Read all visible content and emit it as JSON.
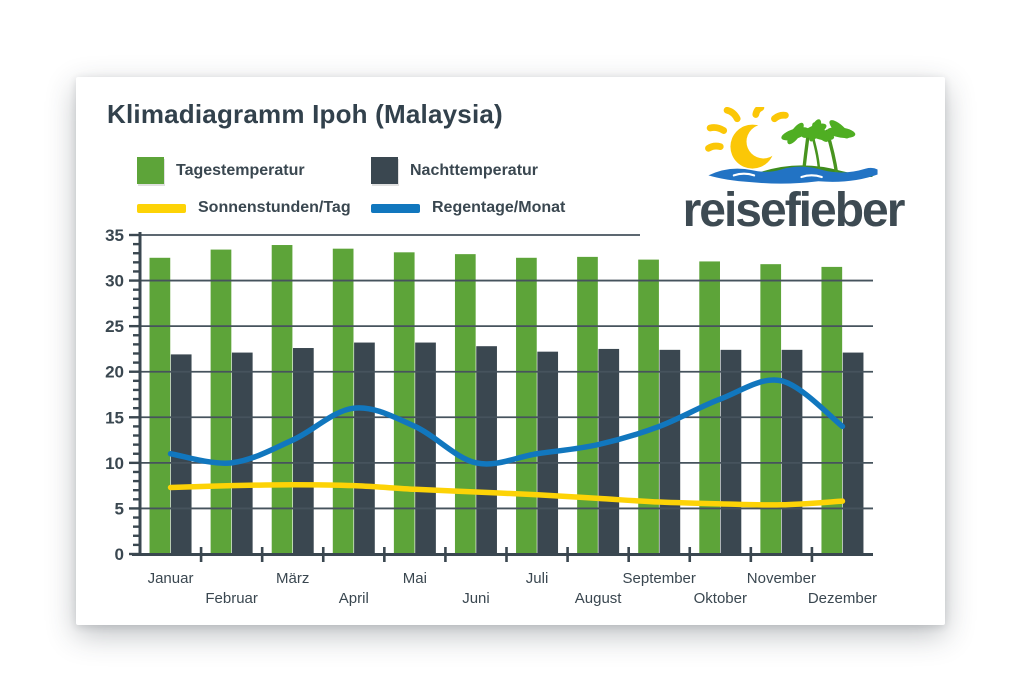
{
  "card": {
    "title": "Klimadiagramm Ipoh (Malaysia)"
  },
  "legend": {
    "items": [
      {
        "label": "Tagestemperatur",
        "swatch": "square",
        "color": "#5da439"
      },
      {
        "label": "Nachttemperatur",
        "swatch": "square",
        "color": "#3a4750"
      },
      {
        "label": "Sonnenstunden/Tag",
        "swatch": "line",
        "color": "#fdd306"
      },
      {
        "label": "Regentage/Monat",
        "swatch": "line",
        "color": "#1177be"
      }
    ]
  },
  "logo": {
    "wordmark": "reisefieber"
  },
  "chart_data": {
    "type": "bar",
    "title": "Klimadiagramm Ipoh (Malaysia)",
    "categories": [
      "Januar",
      "Februar",
      "März",
      "April",
      "Mai",
      "Juni",
      "Juli",
      "August",
      "September",
      "Oktober",
      "November",
      "Dezember"
    ],
    "series": [
      {
        "name": "Tagestemperatur",
        "type": "bar",
        "color": "#5da439",
        "values": [
          32.5,
          33.4,
          33.9,
          33.5,
          33.1,
          32.9,
          32.5,
          32.6,
          32.3,
          32.1,
          31.8,
          31.5
        ]
      },
      {
        "name": "Nachttemperatur",
        "type": "bar",
        "color": "#3a4750",
        "values": [
          21.9,
          22.1,
          22.6,
          23.2,
          23.2,
          22.8,
          22.2,
          22.5,
          22.4,
          22.4,
          22.4,
          22.1
        ]
      },
      {
        "name": "Sonnenstunden/Tag",
        "type": "line",
        "color": "#fdd306",
        "values": [
          7.3,
          7.5,
          7.6,
          7.5,
          7.1,
          6.8,
          6.5,
          6.1,
          5.7,
          5.5,
          5.4,
          5.8
        ]
      },
      {
        "name": "Regentage/Monat",
        "type": "line",
        "color": "#1177be",
        "values": [
          11,
          10,
          12.5,
          16,
          14,
          10,
          11,
          12,
          14,
          17,
          19,
          14
        ]
      }
    ],
    "xlabel": "",
    "ylabel": "",
    "ylim": [
      0,
      35
    ],
    "ytick_step": 5,
    "ytick_labels": [
      "0",
      "5",
      "10",
      "15",
      "20",
      "25",
      "30",
      "35"
    ],
    "grid": true,
    "legend_position": "top-left"
  }
}
